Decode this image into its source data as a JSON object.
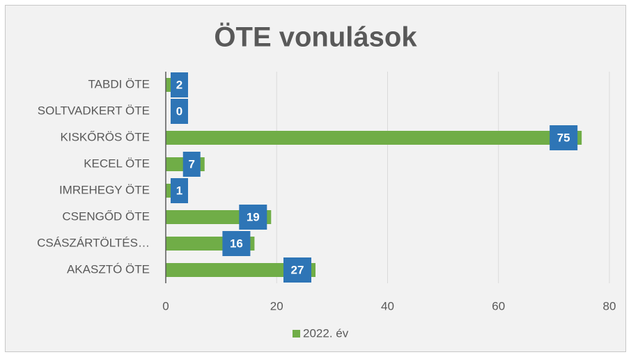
{
  "chart_data": {
    "type": "barh",
    "title": "ÖTE vonulások",
    "categories": [
      "TABDI ÖTE",
      "SOLTVADKERT ÖTE",
      "KISKŐRÖS ÖTE",
      "KECEL ÖTE",
      "IMREHEGY ÖTE",
      "CSENGŐD ÖTE",
      "CSÁSZÁRTÖLTÉS…",
      "AKASZTÓ ÖTE"
    ],
    "series": [
      {
        "name": "2022. év",
        "color": "#70ad47",
        "values": [
          2,
          0,
          75,
          7,
          1,
          19,
          16,
          27
        ]
      }
    ],
    "xlim": [
      0,
      80
    ],
    "xticks": [
      0,
      20,
      40,
      60,
      80
    ],
    "grid": true,
    "legend": "bottom"
  }
}
